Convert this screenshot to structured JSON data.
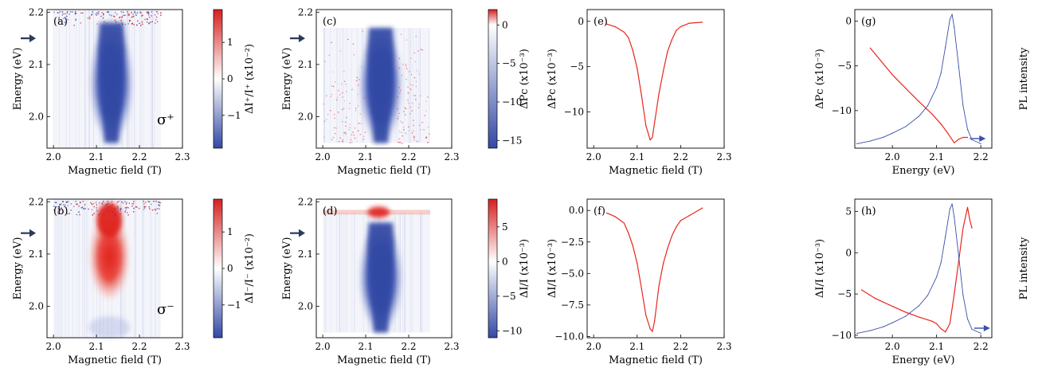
{
  "colors": {
    "red": "#e8261c",
    "blue": "#3a4fa8",
    "map_red": "#d62020",
    "map_blue": "#3248a4",
    "axis": "#000000"
  },
  "arrow_color": "#2a3a5a",
  "chart_data": [
    {
      "id": "a",
      "type": "heatmap",
      "panel_label": "(a)",
      "xlabel": "Magnetic field (T)",
      "ylabel": "Energy (eV)",
      "xlim": [
        1.985,
        2.3
      ],
      "ylim": [
        1.94,
        2.205
      ],
      "xticks": [
        "2.0",
        "2.1",
        "2.2",
        "2.3"
      ],
      "yticks": [
        "2.0",
        "2.1",
        "2.2"
      ],
      "data_xrange": [
        2.0,
        2.25
      ],
      "colorbar": {
        "label": "ΔI⁺/I⁺ (x10⁻²)",
        "range": [
          -1.9,
          1.9
        ],
        "ticks": [
          "−1",
          "0",
          "1"
        ]
      },
      "feature": {
        "sign": "negative",
        "center_field": 2.135,
        "energy_range": [
          1.95,
          2.18
        ],
        "peak_energy": 2.13
      },
      "noise_top": true,
      "annotation": "σ⁺",
      "arrow_energy": 2.15
    },
    {
      "id": "b",
      "type": "heatmap",
      "panel_label": "(b)",
      "xlabel": "Magnetic field (T)",
      "ylabel": "Energy (eV)",
      "xlim": [
        1.985,
        2.3
      ],
      "ylim": [
        1.94,
        2.205
      ],
      "xticks": [
        "2.0",
        "2.1",
        "2.2",
        "2.3"
      ],
      "yticks": [
        "2.0",
        "2.1",
        "2.2"
      ],
      "data_xrange": [
        2.0,
        2.25
      ],
      "colorbar": {
        "label": "ΔI⁻/I⁻ (x10⁻²)",
        "range": [
          -1.9,
          1.9
        ],
        "ticks": [
          "−1",
          "0",
          "1"
        ]
      },
      "feature": {
        "sign": "positive",
        "center_field": 2.13,
        "energy_range": [
          2.02,
          2.2
        ],
        "peak_energy": 2.18
      },
      "noise_top": true,
      "annotation": "σ⁻",
      "arrow_energy": 2.14
    },
    {
      "id": "c",
      "type": "heatmap",
      "panel_label": "(c)",
      "xlabel": "Magnetic field (T)",
      "ylabel": "Energy (eV)",
      "xlim": [
        1.985,
        2.3
      ],
      "ylim": [
        1.94,
        2.205
      ],
      "xticks": [
        "2.0",
        "2.1",
        "2.2",
        "2.3"
      ],
      "yticks": [
        "2.0",
        "2.1",
        "2.2"
      ],
      "data_xrange": [
        2.0,
        2.25
      ],
      "data_yrange": [
        1.95,
        2.17
      ],
      "colorbar": {
        "label": "ΔPc (x10⁻³)",
        "range": [
          -16,
          2
        ],
        "ticks": [
          "0",
          "−5",
          "−10",
          "−15"
        ]
      },
      "feature": {
        "sign": "negative",
        "center_field": 2.135,
        "energy_range": [
          1.95,
          2.17
        ],
        "peak_energy": 2.12
      },
      "noise_bottom": true,
      "annotation": "",
      "arrow_energy": 2.15
    },
    {
      "id": "d",
      "type": "heatmap",
      "panel_label": "(d)",
      "xlabel": "Magnetic field (T)",
      "ylabel": "Energy (eV)",
      "xlim": [
        1.985,
        2.3
      ],
      "ylim": [
        1.94,
        2.205
      ],
      "xticks": [
        "2.0",
        "2.1",
        "2.2",
        "2.3"
      ],
      "yticks": [
        "2.0",
        "2.1",
        "2.2"
      ],
      "data_xrange": [
        2.0,
        2.25
      ],
      "data_yrange": [
        1.95,
        2.18
      ],
      "colorbar": {
        "label": "ΔI/I (x10⁻³)",
        "range": [
          -11,
          9
        ],
        "ticks": [
          "5",
          "0",
          "−5",
          "−10"
        ]
      },
      "feature": {
        "sign": "negative",
        "center_field": 2.135,
        "energy_range": [
          1.95,
          2.16
        ],
        "peak_energy": 2.12
      },
      "red_band": {
        "energy": 2.18,
        "center_field": 2.13
      },
      "annotation": "",
      "arrow_energy": 2.14
    },
    {
      "id": "e",
      "type": "line",
      "panel_label": "(e)",
      "xlabel": "Magnetic field (T)",
      "ylabel": "ΔPc (x10⁻³)",
      "xlim": [
        1.985,
        2.3
      ],
      "ylim": [
        -14,
        1.3
      ],
      "xticks": [
        "2.0",
        "2.1",
        "2.2",
        "2.3"
      ],
      "yticks": [
        "0",
        "−5",
        "−10"
      ],
      "series": [
        {
          "color": "#e8261c",
          "x": [
            2.03,
            2.05,
            2.07,
            2.08,
            2.09,
            2.1,
            2.11,
            2.12,
            2.13,
            2.135,
            2.14,
            2.15,
            2.16,
            2.17,
            2.18,
            2.19,
            2.2,
            2.22,
            2.25
          ],
          "y": [
            -0.3,
            -0.6,
            -1.2,
            -1.8,
            -3.2,
            -5.2,
            -8.2,
            -11.5,
            -13.1,
            -12.8,
            -11.2,
            -8.0,
            -5.5,
            -3.3,
            -2.0,
            -1.0,
            -0.6,
            -0.2,
            -0.1
          ]
        }
      ]
    },
    {
      "id": "f",
      "type": "line",
      "panel_label": "(f)",
      "xlabel": "Magnetic field (T)",
      "ylabel": "ΔI/I (x10⁻³)",
      "xlim": [
        1.985,
        2.3
      ],
      "ylim": [
        -10.1,
        0.9
      ],
      "xticks": [
        "2.0",
        "2.1",
        "2.2",
        "2.3"
      ],
      "yticks": [
        "0.0",
        "−2.5",
        "−5.0",
        "−7.5",
        "−10.0"
      ],
      "series": [
        {
          "color": "#e8261c",
          "x": [
            2.03,
            2.05,
            2.07,
            2.08,
            2.09,
            2.1,
            2.11,
            2.12,
            2.13,
            2.135,
            2.14,
            2.15,
            2.16,
            2.17,
            2.18,
            2.19,
            2.2,
            2.22,
            2.25
          ],
          "y": [
            -0.2,
            -0.5,
            -1.0,
            -1.8,
            -2.8,
            -4.2,
            -6.2,
            -8.3,
            -9.4,
            -9.6,
            -8.8,
            -6.0,
            -4.2,
            -3.0,
            -2.0,
            -1.3,
            -0.8,
            -0.4,
            0.2
          ]
        }
      ]
    },
    {
      "id": "g",
      "type": "line",
      "panel_label": "(g)",
      "xlabel": "Energy (eV)",
      "ylabel": "ΔPc (x10⁻³)",
      "ylabel_right": "PL intensity",
      "xlim": [
        1.915,
        2.225
      ],
      "ylim": [
        -14.2,
        1.3
      ],
      "xticks": [
        "2.0",
        "2.1",
        "2.2"
      ],
      "yticks": [
        "0",
        "−5",
        "−10"
      ],
      "series": [
        {
          "color": "#e8261c",
          "x": [
            1.95,
            1.98,
            2.0,
            2.03,
            2.06,
            2.09,
            2.11,
            2.125,
            2.14,
            2.15,
            2.16,
            2.17
          ],
          "y": [
            -3.0,
            -4.8,
            -6.0,
            -7.5,
            -9.0,
            -10.4,
            -11.5,
            -12.5,
            -13.6,
            -13.2,
            -13.0,
            -13.0
          ]
        },
        {
          "color": "#3a4fa8",
          "axis": "right",
          "x": [
            1.92,
            1.95,
            1.98,
            2.0,
            2.03,
            2.06,
            2.08,
            2.1,
            2.11,
            2.12,
            2.13,
            2.135,
            2.14,
            2.15,
            2.16,
            2.17,
            2.18,
            2.2
          ],
          "y": [
            0.01,
            0.03,
            0.06,
            0.09,
            0.14,
            0.22,
            0.3,
            0.44,
            0.55,
            0.75,
            0.96,
            1.0,
            0.9,
            0.6,
            0.3,
            0.12,
            0.04,
            0.01
          ]
        }
      ],
      "arrow_energy": 2.175
    },
    {
      "id": "h",
      "type": "line",
      "panel_label": "(h)",
      "xlabel": "Energy (eV)",
      "ylabel": "ΔI/I (x10⁻³)",
      "ylabel_right": "PL intensity",
      "xlim": [
        1.915,
        2.225
      ],
      "ylim": [
        -10.3,
        6.5
      ],
      "xticks": [
        "2.0",
        "2.1",
        "2.2"
      ],
      "yticks": [
        "5",
        "0",
        "−5",
        "−10"
      ],
      "series": [
        {
          "color": "#e8261c",
          "x": [
            1.93,
            1.96,
            2.0,
            2.03,
            2.06,
            2.09,
            2.1,
            2.11,
            2.12,
            2.13,
            2.14,
            2.15,
            2.16,
            2.17,
            2.175,
            2.18
          ],
          "y": [
            -4.5,
            -5.5,
            -6.5,
            -7.2,
            -7.8,
            -8.3,
            -8.6,
            -9.2,
            -9.6,
            -8.6,
            -5.0,
            -1.0,
            3.0,
            5.5,
            4.0,
            3.0
          ]
        },
        {
          "color": "#3a4fa8",
          "axis": "right",
          "x": [
            1.92,
            1.95,
            1.98,
            2.0,
            2.03,
            2.06,
            2.08,
            2.1,
            2.11,
            2.12,
            2.13,
            2.135,
            2.14,
            2.15,
            2.16,
            2.17,
            2.18,
            2.2
          ],
          "y": [
            0.01,
            0.03,
            0.06,
            0.09,
            0.14,
            0.22,
            0.3,
            0.44,
            0.55,
            0.75,
            0.96,
            1.0,
            0.9,
            0.6,
            0.3,
            0.12,
            0.04,
            0.01
          ]
        }
      ],
      "arrow_energy": 2.185
    }
  ]
}
